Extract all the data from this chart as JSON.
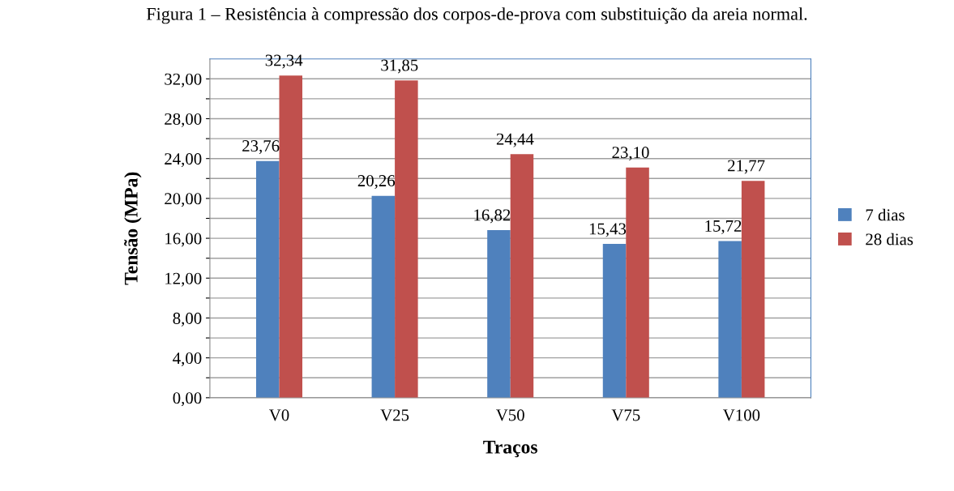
{
  "chart_data": {
    "type": "bar",
    "title": "Figura 1 – Resistência à compressão dos corpos-de-prova com substituição da areia normal.",
    "xlabel": "Traços",
    "ylabel": "Tensão (MPa)",
    "categories": [
      "V0",
      "V25",
      "V50",
      "V75",
      "V100"
    ],
    "series": [
      {
        "name": "7 dias",
        "color": "#4f81bd",
        "values": [
          23.76,
          20.26,
          16.82,
          15.43,
          15.72
        ],
        "value_labels": [
          "23,76",
          "20,26",
          "16,82",
          "15,43",
          "15,72"
        ]
      },
      {
        "name": "28 dias",
        "color": "#c0504d",
        "values": [
          32.34,
          31.85,
          24.44,
          23.1,
          21.77
        ],
        "value_labels": [
          "32,34",
          "31,85",
          "24,44",
          "23,10",
          "21,77"
        ]
      }
    ],
    "ylim": [
      0,
      34
    ],
    "yticks": [
      {
        "value": 0,
        "label": "0,00"
      },
      {
        "value": 2,
        "label": null
      },
      {
        "value": 4,
        "label": "4,00"
      },
      {
        "value": 6,
        "label": null
      },
      {
        "value": 8,
        "label": "8,00"
      },
      {
        "value": 10,
        "label": null
      },
      {
        "value": 12,
        "label": "12,00"
      },
      {
        "value": 14,
        "label": null
      },
      {
        "value": 16,
        "label": "16,00"
      },
      {
        "value": 18,
        "label": null
      },
      {
        "value": 20,
        "label": "20,00"
      },
      {
        "value": 22,
        "label": null
      },
      {
        "value": 24,
        "label": "24,00"
      },
      {
        "value": 26,
        "label": null
      },
      {
        "value": 28,
        "label": "28,00"
      },
      {
        "value": 30,
        "label": null
      },
      {
        "value": 32,
        "label": "32,00"
      }
    ],
    "grid": "y",
    "legend": "right"
  }
}
